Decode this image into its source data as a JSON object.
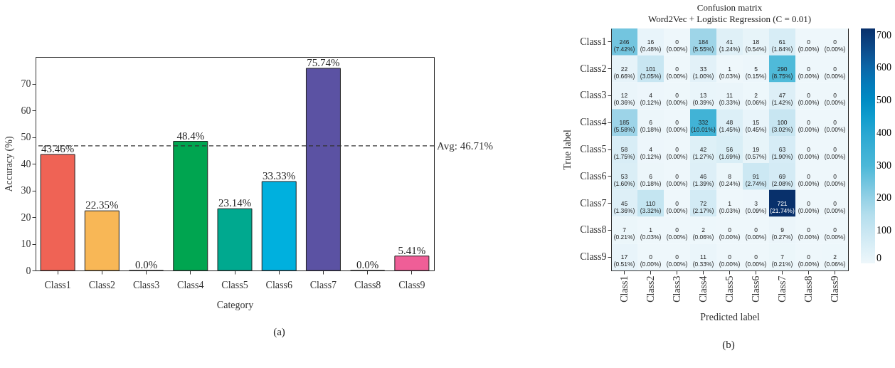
{
  "chart_data": [
    {
      "type": "bar",
      "xlabel": "Category",
      "ylabel": "Accuracy (%)",
      "categories": [
        "Class1",
        "Class2",
        "Class3",
        "Class4",
        "Class5",
        "Class6",
        "Class7",
        "Class8",
        "Class9"
      ],
      "values": [
        43.46,
        22.35,
        0.0,
        48.4,
        23.14,
        33.33,
        75.74,
        0.0,
        5.41
      ],
      "colors": [
        "#ef6355",
        "#f8b756",
        "#222222",
        "#00a550",
        "#00a98f",
        "#00b0de",
        "#5b52a3",
        "#222222",
        "#ef5e97"
      ],
      "value_labels": [
        "43.46%",
        "22.35%",
        "0.0%",
        "48.4%",
        "23.14%",
        "33.33%",
        "75.74%",
        "0.0%",
        "5.41%"
      ],
      "ylim": [
        0,
        80
      ],
      "yticks": [
        0,
        10,
        20,
        30,
        40,
        50,
        60,
        70
      ],
      "grid": false,
      "ref_lines": [
        {
          "axis": "y",
          "value": 46.71,
          "label": "Avg: 46.71%",
          "line_style": "dashed",
          "color": "#333333"
        }
      ],
      "annotations": [
        "(a)"
      ]
    },
    {
      "type": "heatmap",
      "title": "Confusion matrix",
      "subtitle": "Word2Vec + Logistic Regression (C = 0.01)",
      "xlabel": "Predicted label",
      "ylabel": "True label",
      "clabel": null,
      "categories": [
        "Class1",
        "Class2",
        "Class3",
        "Class4",
        "Class5",
        "Class6",
        "Class7",
        "Class8",
        "Class9"
      ],
      "y_categories": [
        "Class1",
        "Class2",
        "Class3",
        "Class4",
        "Class5",
        "Class6",
        "Class7",
        "Class8",
        "Class9"
      ],
      "cells": [
        [
          246,
          16,
          0,
          184,
          41,
          18,
          61,
          0,
          0
        ],
        [
          22,
          101,
          0,
          33,
          1,
          5,
          290,
          0,
          0
        ],
        [
          12,
          4,
          0,
          13,
          11,
          2,
          47,
          0,
          0
        ],
        [
          185,
          6,
          0,
          332,
          48,
          15,
          100,
          0,
          0
        ],
        [
          58,
          4,
          0,
          42,
          56,
          19,
          63,
          0,
          0
        ],
        [
          53,
          6,
          0,
          46,
          8,
          91,
          69,
          0,
          0
        ],
        [
          45,
          110,
          0,
          72,
          1,
          3,
          721,
          0,
          0
        ],
        [
          7,
          1,
          0,
          2,
          0,
          0,
          9,
          0,
          0
        ],
        [
          17,
          0,
          0,
          11,
          0,
          0,
          7,
          0,
          2
        ]
      ],
      "cell_labels": [
        [
          "246\n(7.42%)",
          "16\n(0.48%)",
          "0\n(0.00%)",
          "184\n(5.55%)",
          "41\n(1.24%)",
          "18\n(0.54%)",
          "61\n(1.84%)",
          "0\n(0.00%)",
          "0\n(0.00%)"
        ],
        [
          "22\n(0.66%)",
          "101\n(3.05%)",
          "0\n(0.00%)",
          "33\n(1.00%)",
          "1\n(0.03%)",
          "5\n(0.15%)",
          "290\n(8.75%)",
          "0\n(0.00%)",
          "0\n(0.00%)"
        ],
        [
          "12\n(0.36%)",
          "4\n(0.12%)",
          "0\n(0.00%)",
          "13\n(0.39%)",
          "11\n(0.33%)",
          "2\n(0.06%)",
          "47\n(1.42%)",
          "0\n(0.00%)",
          "0\n(0.00%)"
        ],
        [
          "185\n(5.58%)",
          "6\n(0.18%)",
          "0\n(0.00%)",
          "332\n(10.01%)",
          "48\n(1.45%)",
          "15\n(0.45%)",
          "100\n(3.02%)",
          "0\n(0.00%)",
          "0\n(0.00%)"
        ],
        [
          "58\n(1.75%)",
          "4\n(0.12%)",
          "0\n(0.00%)",
          "42\n(1.27%)",
          "56\n(1.69%)",
          "19\n(0.57%)",
          "63\n(1.90%)",
          "0\n(0.00%)",
          "0\n(0.00%)"
        ],
        [
          "53\n(1.60%)",
          "6\n(0.18%)",
          "0\n(0.00%)",
          "46\n(1.39%)",
          "8\n(0.24%)",
          "91\n(2.74%)",
          "69\n(2.08%)",
          "0\n(0.00%)",
          "0\n(0.00%)"
        ],
        [
          "45\n(1.36%)",
          "110\n(3.32%)",
          "0\n(0.00%)",
          "72\n(2.17%)",
          "1\n(0.03%)",
          "3\n(0.09%)",
          "721\n(21.74%)",
          "0\n(0.00%)",
          "0\n(0.00%)"
        ],
        [
          "7\n(0.21%)",
          "1\n(0.03%)",
          "0\n(0.00%)",
          "2\n(0.06%)",
          "0\n(0.00%)",
          "0\n(0.00%)",
          "9\n(0.27%)",
          "0\n(0.00%)",
          "0\n(0.00%)"
        ],
        [
          "17\n(0.51%)",
          "0\n(0.00%)",
          "0\n(0.00%)",
          "11\n(0.33%)",
          "0\n(0.00%)",
          "0\n(0.00%)",
          "7\n(0.21%)",
          "0\n(0.00%)",
          "2\n(0.06%)"
        ]
      ],
      "clim": [
        0,
        721
      ],
      "cticks": [
        0,
        100,
        200,
        300,
        400,
        500,
        600,
        700
      ],
      "annotations": [
        "(b)"
      ]
    }
  ]
}
